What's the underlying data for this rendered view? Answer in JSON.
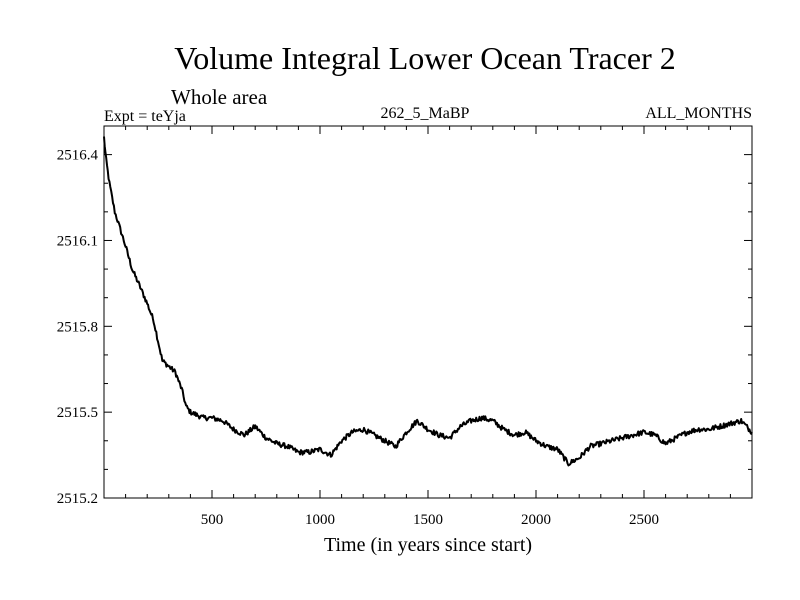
{
  "chart_data": {
    "type": "line",
    "title": "Volume Integral Lower Ocean Tracer 2",
    "subtitle": "Whole area",
    "experiment_label": "Expt = teYja",
    "center_label": "262_5_MaBP",
    "right_label": "ALL_MONTHS",
    "xlabel": "Time (in years since start)",
    "ylabel": "",
    "xlim": [
      0,
      3000
    ],
    "ylim": [
      2515.2,
      2516.5
    ],
    "x_ticks": [
      500,
      1000,
      1500,
      2000,
      2500
    ],
    "x_tick_labels": [
      "500",
      "1000",
      "1500",
      "2000",
      "2500"
    ],
    "y_ticks": [
      2515.2,
      2515.5,
      2515.8,
      2516.1,
      2516.4
    ],
    "y_tick_labels": [
      "2515.2",
      "2515.5",
      "2515.8",
      "2516.1",
      "2516.4"
    ],
    "grid": false,
    "series": [
      {
        "name": "Lower Ocean Tracer 2",
        "x": [
          0,
          10,
          25,
          50,
          75,
          100,
          130,
          160,
          200,
          230,
          250,
          270,
          300,
          330,
          360,
          380,
          400,
          430,
          460,
          500,
          550,
          600,
          650,
          700,
          750,
          800,
          850,
          900,
          950,
          1000,
          1050,
          1100,
          1150,
          1200,
          1250,
          1300,
          1350,
          1400,
          1450,
          1500,
          1550,
          1600,
          1650,
          1700,
          1750,
          1800,
          1850,
          1900,
          1950,
          2000,
          2050,
          2100,
          2150,
          2200,
          2250,
          2300,
          2350,
          2400,
          2450,
          2500,
          2550,
          2600,
          2650,
          2700,
          2750,
          2800,
          2850,
          2900,
          2950,
          3000
        ],
        "y": [
          2516.46,
          2516.38,
          2516.3,
          2516.2,
          2516.14,
          2516.08,
          2516.0,
          2515.95,
          2515.88,
          2515.82,
          2515.75,
          2515.68,
          2515.66,
          2515.64,
          2515.58,
          2515.52,
          2515.5,
          2515.49,
          2515.48,
          2515.48,
          2515.47,
          2515.44,
          2515.42,
          2515.45,
          2515.41,
          2515.39,
          2515.38,
          2515.36,
          2515.36,
          2515.37,
          2515.35,
          2515.4,
          2515.43,
          2515.44,
          2515.42,
          2515.4,
          2515.38,
          2515.43,
          2515.47,
          2515.44,
          2515.42,
          2515.41,
          2515.45,
          2515.47,
          2515.48,
          2515.47,
          2515.44,
          2515.42,
          2515.43,
          2515.4,
          2515.38,
          2515.37,
          2515.32,
          2515.34,
          2515.38,
          2515.39,
          2515.4,
          2515.41,
          2515.42,
          2515.43,
          2515.42,
          2515.39,
          2515.41,
          2515.43,
          2515.44,
          2515.44,
          2515.45,
          2515.46,
          2515.47,
          2515.43
        ]
      }
    ]
  }
}
